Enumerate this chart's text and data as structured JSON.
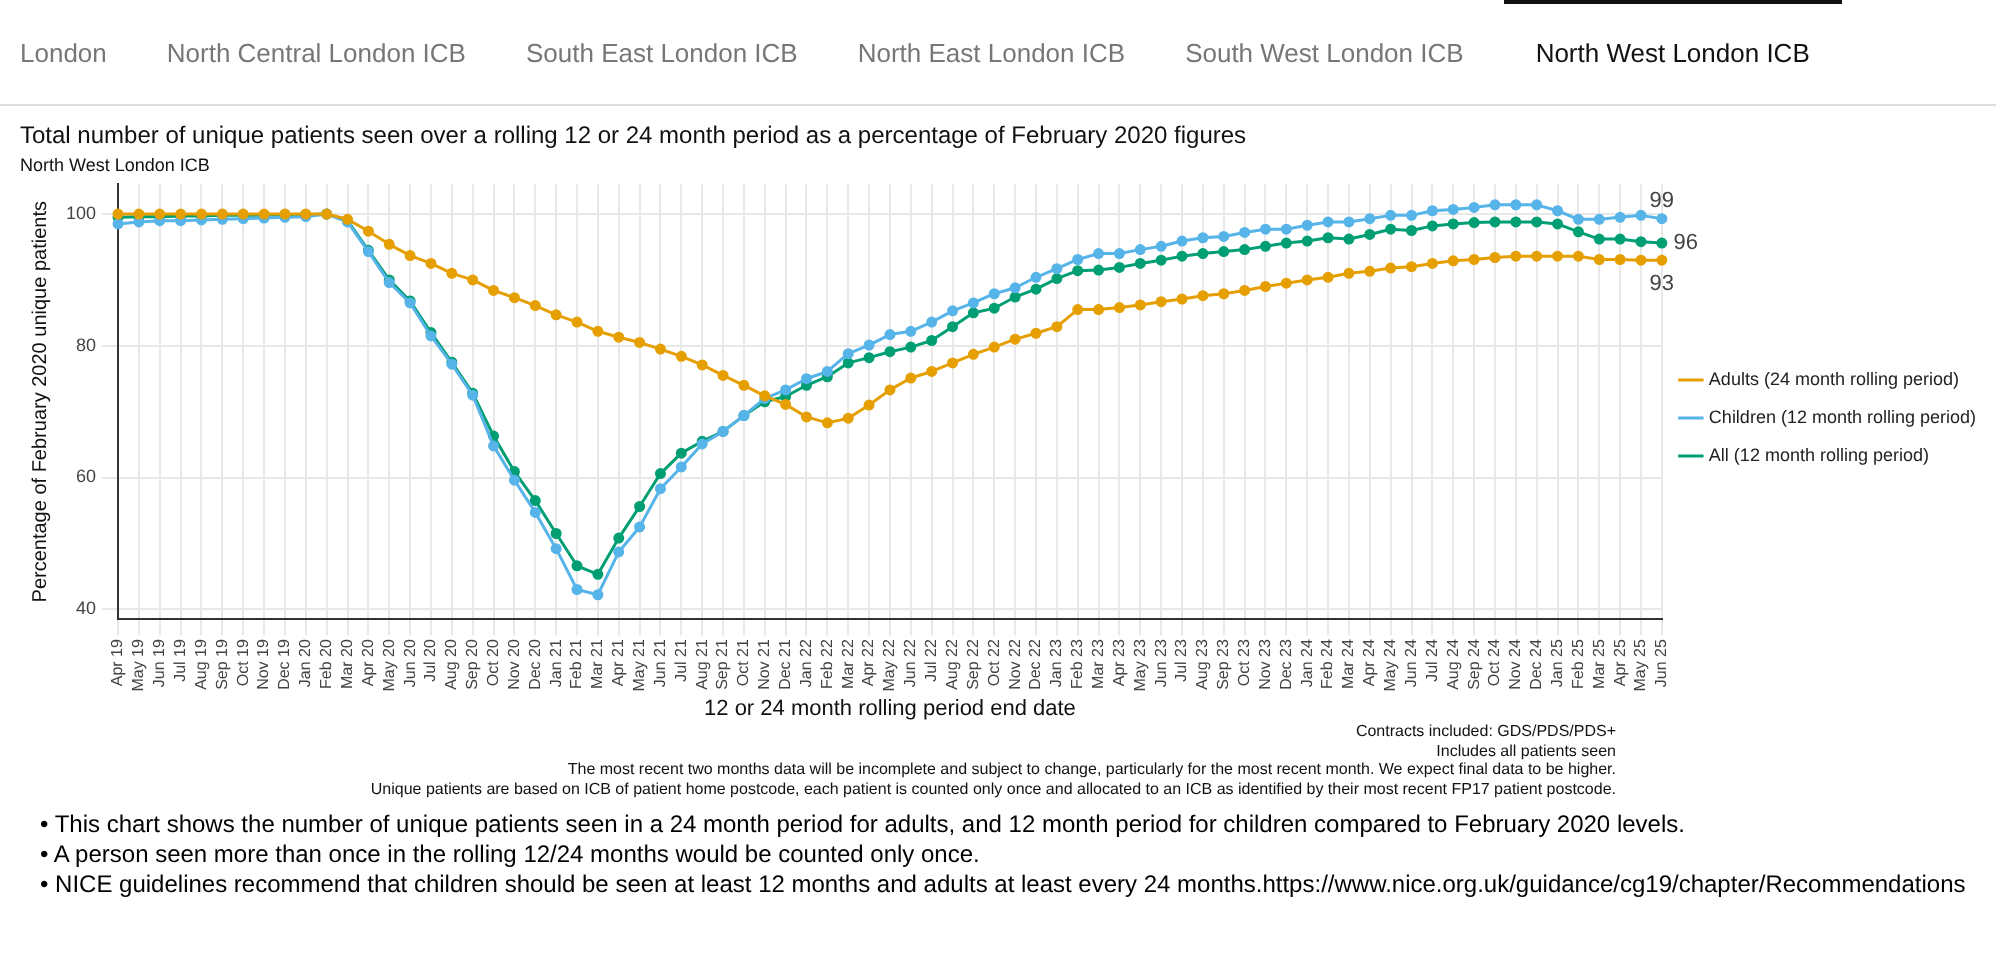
{
  "chart_data": {
    "type": "line",
    "title": "Total number of unique patients seen over a rolling 12 or 24 month period as a percentage of February 2020 figures",
    "subtitle": "North West London ICB",
    "xlabel": "12 or 24 month rolling period end date",
    "ylabel": "Percentage of February 2020 unique patients",
    "categories": [
      "Apr 19",
      "May 19",
      "Jun 19",
      "Jul 19",
      "Aug 19",
      "Sep 19",
      "Oct 19",
      "Nov 19",
      "Dec 19",
      "Jan 20",
      "Feb 20",
      "Mar 20",
      "Apr 20",
      "May 20",
      "Jun 20",
      "Jul 20",
      "Aug 20",
      "Sep 20",
      "Oct 20",
      "Nov 20",
      "Dec 20",
      "Jan 21",
      "Feb 21",
      "Mar 21",
      "Apr 21",
      "May 21",
      "Jun 21",
      "Jul 21",
      "Aug 21",
      "Sep 21",
      "Oct 21",
      "Nov 21",
      "Dec 21",
      "Jan 22",
      "Feb 22",
      "Mar 22",
      "Apr 22",
      "May 22",
      "Jun 22",
      "Jul 22",
      "Aug 22",
      "Sep 22",
      "Oct 22",
      "Nov 22",
      "Dec 22",
      "Jan 23",
      "Feb 23",
      "Mar 23",
      "Apr 23",
      "May 23",
      "Jun 23",
      "Jul 23",
      "Aug 23",
      "Sep 23",
      "Oct 23",
      "Nov 23",
      "Dec 23",
      "Jan 24",
      "Feb 24",
      "Mar 24",
      "Apr 24",
      "May 24",
      "Jun 24",
      "Jul 24",
      "Aug 24",
      "Sep 24",
      "Oct 24",
      "Nov 24",
      "Dec 24",
      "Jan 25",
      "Feb 25",
      "Mar 25",
      "Apr 25",
      "May 25",
      "Jun 25"
    ],
    "series": [
      {
        "name": "Adults (24 month rolling period)",
        "color": "#e69f00",
        "values": [
          100,
          100,
          100,
          100,
          100,
          100,
          100,
          100,
          100,
          100,
          100,
          99.2,
          97.4,
          95.4,
          93.7,
          92.5,
          91,
          90,
          88.4,
          87.3,
          86.1,
          84.7,
          83.6,
          82.2,
          81.3,
          80.5,
          79.5,
          78.4,
          77.1,
          75.5,
          74,
          72.4,
          71.1,
          69.2,
          68.3,
          69,
          71,
          73.3,
          75.1,
          76.1,
          77.4,
          78.7,
          79.8,
          81,
          81.9,
          82.9,
          85.5,
          85.5,
          85.8,
          86.2,
          86.7,
          87.1,
          87.6,
          87.9,
          88.4,
          89,
          89.5,
          90,
          90.4,
          91,
          91.3,
          91.8,
          92,
          92.5,
          92.9,
          93.1,
          93.4,
          93.6,
          93.6,
          93.6,
          93.6,
          93.1,
          93.1,
          93,
          93
        ],
        "value_labels": [
          null,
          null,
          null,
          null,
          null,
          null,
          null,
          null,
          null,
          null,
          null,
          null,
          null,
          null,
          null,
          null,
          null,
          null,
          null,
          null,
          null,
          null,
          null,
          null,
          null,
          null,
          null,
          null,
          null,
          null,
          null,
          null,
          null,
          null,
          null,
          null,
          null,
          null,
          null,
          null,
          null,
          null,
          null,
          null,
          null,
          null,
          null,
          null,
          null,
          null,
          null,
          null,
          null,
          null,
          null,
          null,
          null,
          null,
          null,
          null,
          null,
          null,
          null,
          null,
          null,
          null,
          null,
          null,
          null,
          null,
          null,
          null,
          null,
          null,
          "93"
        ]
      },
      {
        "name": "Children (12 month rolling period)",
        "color": "#56b4e9",
        "values": [
          98.5,
          98.8,
          99,
          99,
          99.1,
          99.2,
          99.3,
          99.4,
          99.5,
          99.6,
          100,
          98.8,
          94.3,
          89.6,
          86.5,
          81.5,
          77.2,
          72.5,
          64.8,
          59.6,
          54.7,
          49.2,
          43,
          42.2,
          48.7,
          52.5,
          58.3,
          61.6,
          65.1,
          67,
          69.4,
          72,
          73.3,
          75,
          76.1,
          78.8,
          80.1,
          81.7,
          82.2,
          83.6,
          85.3,
          86.5,
          87.9,
          88.8,
          90.4,
          91.7,
          93.1,
          94,
          94,
          94.6,
          95.1,
          95.9,
          96.4,
          96.6,
          97.2,
          97.7,
          97.7,
          98.3,
          98.8,
          98.8,
          99.3,
          99.8,
          99.8,
          100.5,
          100.7,
          101,
          101.4,
          101.4,
          101.4,
          100.5,
          99.2,
          99.2,
          99.5,
          99.8,
          99.3
        ],
        "value_labels": [
          null,
          null,
          null,
          null,
          null,
          null,
          null,
          null,
          null,
          null,
          null,
          null,
          null,
          null,
          null,
          null,
          null,
          null,
          null,
          null,
          null,
          null,
          null,
          null,
          null,
          null,
          null,
          null,
          null,
          null,
          null,
          null,
          null,
          null,
          null,
          null,
          null,
          null,
          null,
          null,
          null,
          null,
          null,
          null,
          null,
          null,
          null,
          null,
          null,
          null,
          null,
          null,
          null,
          null,
          null,
          null,
          null,
          null,
          null,
          null,
          null,
          null,
          null,
          null,
          null,
          null,
          null,
          null,
          null,
          null,
          null,
          null,
          null,
          null,
          "99"
        ]
      },
      {
        "name": "All (12 month rolling period)",
        "color": "#009e73",
        "values": [
          99.5,
          99.6,
          99.6,
          99.7,
          99.7,
          99.8,
          99.8,
          99.8,
          99.9,
          99.9,
          100,
          99,
          94.5,
          90,
          86.8,
          82,
          77.5,
          72.8,
          66.3,
          60.9,
          56.5,
          51.5,
          46.6,
          45.3,
          50.8,
          55.6,
          60.6,
          63.7,
          65.5,
          67,
          69.4,
          71.5,
          72.3,
          74,
          75.3,
          77.4,
          78.2,
          79.1,
          79.8,
          80.8,
          82.9,
          85,
          85.7,
          87.4,
          88.6,
          90.2,
          91.4,
          91.5,
          91.9,
          92.5,
          93,
          93.6,
          94,
          94.3,
          94.6,
          95.1,
          95.6,
          95.9,
          96.4,
          96.2,
          96.9,
          97.7,
          97.5,
          98.2,
          98.5,
          98.7,
          98.8,
          98.8,
          98.8,
          98.5,
          97.3,
          96.2,
          96.2,
          95.8,
          95.6
        ],
        "value_labels": [
          null,
          null,
          null,
          null,
          null,
          null,
          null,
          null,
          null,
          null,
          null,
          null,
          null,
          null,
          null,
          null,
          null,
          null,
          null,
          null,
          null,
          null,
          null,
          null,
          null,
          null,
          null,
          null,
          null,
          null,
          null,
          null,
          null,
          null,
          null,
          null,
          null,
          null,
          null,
          null,
          null,
          null,
          null,
          null,
          null,
          null,
          null,
          null,
          null,
          null,
          null,
          null,
          null,
          null,
          null,
          null,
          null,
          null,
          null,
          null,
          null,
          null,
          null,
          null,
          null,
          null,
          null,
          null,
          null,
          null,
          null,
          null,
          null,
          null,
          "96"
        ]
      }
    ],
    "ylim": [
      38.5,
      104.5
    ],
    "yticks": [
      40,
      60,
      80,
      100
    ],
    "grid": true,
    "legend": "right",
    "marker": "circle",
    "line_style": "solid",
    "annotations": [
      "London",
      "North Central London ICB",
      "South East London ICB",
      "North East London ICB",
      "South West London ICB",
      "North West London ICB",
      "Contracts included: GDS/PDS/PDS+",
      "Includes all patients seen",
      "The most recent two months data will be incomplete and subject to change, particularly for the most recent month. We expect final data to be higher.",
      "Unique patients are based on ICB of patient home postcode, each patient is counted only once and allocated to an ICB as identified by their most recent FP17 patient postcode.",
      "• This chart shows the number of unique patients seen in a 24 month period for adults, and 12 month period for children compared to February 2020 levels.",
      "• A person seen more than once in the rolling 12/24 months would be counted only once.",
      "• NICE guidelines recommend that children should be seen at least 12 months and adults at least every 24 months.https://www.nice.org.uk/guidance/cg19/chapter/Recommendations"
    ]
  }
}
